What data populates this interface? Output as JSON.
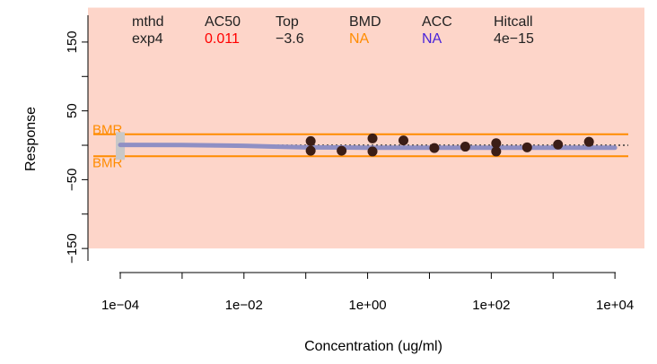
{
  "chart_data": {
    "type": "scatter",
    "title": "",
    "xlabel": "Concentration (ug/ml)",
    "ylabel": "Response",
    "xscale": "log",
    "xlim": [
      3e-05,
      30000
    ],
    "ylim": [
      -185,
      202
    ],
    "grid": false,
    "legend": "none",
    "background_band": {
      "y_from": -150,
      "y_to": 200,
      "color": "#fdd5c9"
    },
    "x_ticks": [
      {
        "value": 0.0001,
        "label": "1e−04"
      },
      {
        "value": 0.01,
        "label": "1e−02"
      },
      {
        "value": 1,
        "label": "1e+00"
      },
      {
        "value": 100,
        "label": "1e+02"
      },
      {
        "value": 10000,
        "label": "1e+04"
      }
    ],
    "x_minor_ticks": [
      0.001,
      0.1,
      10,
      1000
    ],
    "y_ticks": [
      {
        "value": 150,
        "label": "150"
      },
      {
        "value": 50,
        "label": "50"
      },
      {
        "value": -50,
        "label": "−50"
      },
      {
        "value": -150,
        "label": "−150"
      }
    ],
    "y_minor_ticks": [
      100,
      0,
      -100
    ],
    "points": {
      "color": "#3b1d16",
      "x": [
        0.12,
        0.12,
        0.38,
        1.2,
        1.2,
        3.8,
        12,
        38,
        120,
        120,
        380,
        1200,
        3800
      ],
      "y": [
        6,
        -8,
        -8,
        10,
        -9,
        7,
        -4,
        -2,
        3,
        -9,
        -3,
        1,
        5
      ]
    },
    "controls": {
      "color": "#c8c8c8",
      "x": [
        0.0001,
        0.0001,
        0.0001,
        0.0001
      ],
      "y": [
        -6,
        2,
        10,
        -12
      ]
    },
    "cutoff_lines": {
      "color": "#ff8c00",
      "values": [
        16,
        -16
      ],
      "label": "BMR"
    },
    "baseline_dotted": {
      "value": 0,
      "color": "#333333"
    },
    "fit_curve": {
      "color": "#8f8fc4",
      "x": [
        0.0001,
        0.001,
        0.01,
        0.03,
        0.1,
        1,
        10,
        100,
        1000,
        10000
      ],
      "y": [
        0.5,
        0.3,
        -0.8,
        -2.0,
        -3.0,
        -3.5,
        -3.6,
        -3.6,
        -3.6,
        -3.6
      ]
    },
    "summary_table": {
      "headers": [
        "mthd",
        "AC50",
        "Top",
        "BMD",
        "ACC",
        "Hitcall"
      ],
      "values": [
        "exp4",
        "0.011",
        "−3.6",
        "NA",
        "NA",
        "4e−15"
      ],
      "value_colors": [
        "#222222",
        "#ff0000",
        "#222222",
        "#ff8c00",
        "#4a24d9",
        "#222222"
      ]
    }
  }
}
